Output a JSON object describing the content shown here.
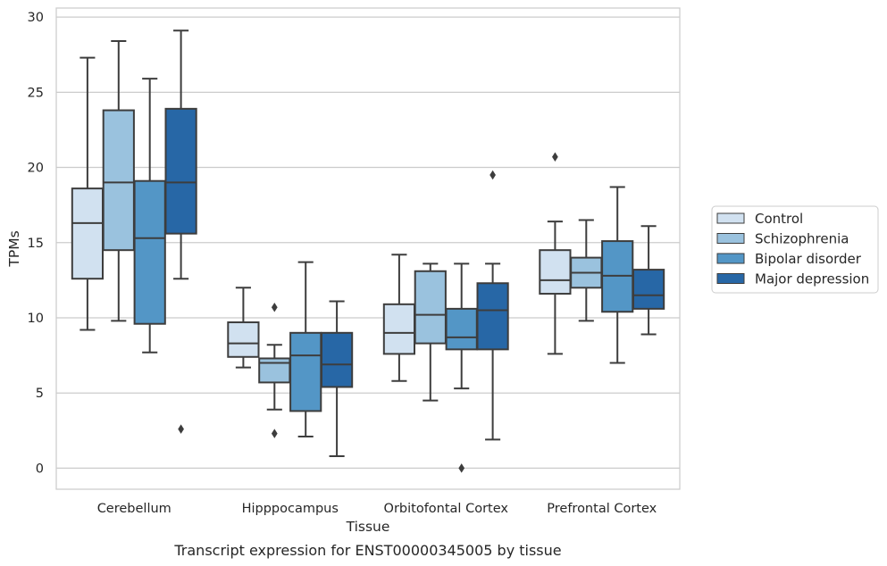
{
  "chart_data": {
    "type": "box",
    "title": "",
    "caption": "Transcript expression for ENST00000345005 by tissue",
    "xlabel": "Tissue",
    "ylabel": "TPMs",
    "ylim": [
      -1.4,
      30.6
    ],
    "yticks": [
      0,
      5,
      10,
      15,
      20,
      25,
      30
    ],
    "grid": true,
    "legend_position": "right",
    "categories": [
      "Cerebellum",
      "Hipppocampus",
      "Orbitofontal Cortex",
      "Prefrontal Cortex"
    ],
    "series": [
      {
        "name": "Control",
        "color": "#d1e1f0",
        "boxes": [
          {
            "whislo": 9.2,
            "q1": 12.6,
            "med": 16.3,
            "q3": 18.6,
            "whishi": 27.3,
            "fliers": []
          },
          {
            "whislo": 6.7,
            "q1": 7.4,
            "med": 8.3,
            "q3": 9.7,
            "whishi": 12.0,
            "fliers": []
          },
          {
            "whislo": 5.8,
            "q1": 7.6,
            "med": 9.0,
            "q3": 10.9,
            "whishi": 14.2,
            "fliers": []
          },
          {
            "whislo": 7.6,
            "q1": 11.6,
            "med": 12.5,
            "q3": 14.5,
            "whishi": 16.4,
            "fliers": [
              20.7
            ]
          }
        ]
      },
      {
        "name": "Schizophrenia",
        "color": "#9ac2de",
        "boxes": [
          {
            "whislo": 9.8,
            "q1": 14.5,
            "med": 19.0,
            "q3": 23.8,
            "whishi": 28.4,
            "fliers": []
          },
          {
            "whislo": 3.9,
            "q1": 5.7,
            "med": 7.0,
            "q3": 7.3,
            "whishi": 8.2,
            "fliers": [
              2.3,
              10.7
            ]
          },
          {
            "whislo": 4.5,
            "q1": 8.3,
            "med": 10.2,
            "q3": 13.1,
            "whishi": 13.6,
            "fliers": []
          },
          {
            "whislo": 9.8,
            "q1": 12.0,
            "med": 13.0,
            "q3": 14.0,
            "whishi": 16.5,
            "fliers": []
          }
        ]
      },
      {
        "name": "Bipolar disorder",
        "color": "#5396c6",
        "boxes": [
          {
            "whislo": 7.7,
            "q1": 9.6,
            "med": 15.3,
            "q3": 19.1,
            "whishi": 25.9,
            "fliers": []
          },
          {
            "whislo": 2.1,
            "q1": 3.8,
            "med": 7.5,
            "q3": 9.0,
            "whishi": 13.7,
            "fliers": []
          },
          {
            "whislo": 5.3,
            "q1": 7.9,
            "med": 8.7,
            "q3": 10.6,
            "whishi": 13.6,
            "fliers": [
              0.0
            ]
          },
          {
            "whislo": 7.0,
            "q1": 10.4,
            "med": 12.8,
            "q3": 15.1,
            "whishi": 18.7,
            "fliers": []
          }
        ]
      },
      {
        "name": "Major depression",
        "color": "#2767a6",
        "boxes": [
          {
            "whislo": 12.6,
            "q1": 15.6,
            "med": 19.0,
            "q3": 23.9,
            "whishi": 29.1,
            "fliers": [
              2.6
            ]
          },
          {
            "whislo": 0.8,
            "q1": 5.4,
            "med": 6.9,
            "q3": 9.0,
            "whishi": 11.1,
            "fliers": []
          },
          {
            "whislo": 1.9,
            "q1": 7.9,
            "med": 10.5,
            "q3": 12.3,
            "whishi": 13.6,
            "fliers": [
              19.5
            ]
          },
          {
            "whislo": 8.9,
            "q1": 10.6,
            "med": 11.5,
            "q3": 13.2,
            "whishi": 16.1,
            "fliers": []
          }
        ]
      }
    ]
  }
}
